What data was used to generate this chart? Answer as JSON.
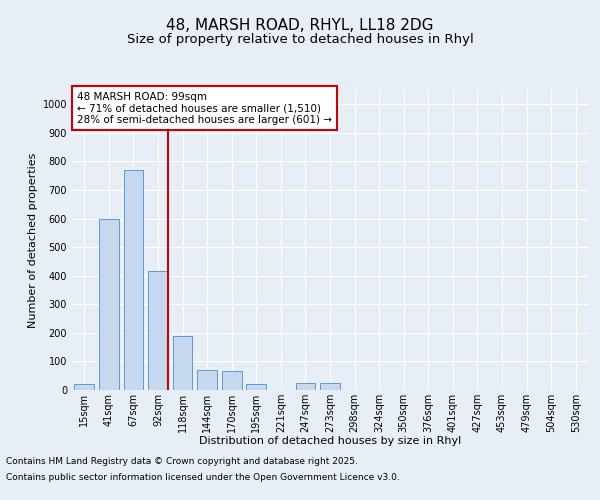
{
  "title_line1": "48, MARSH ROAD, RHYL, LL18 2DG",
  "title_line2": "Size of property relative to detached houses in Rhyl",
  "xlabel": "Distribution of detached houses by size in Rhyl",
  "ylabel": "Number of detached properties",
  "categories": [
    "15sqm",
    "41sqm",
    "67sqm",
    "92sqm",
    "118sqm",
    "144sqm",
    "170sqm",
    "195sqm",
    "221sqm",
    "247sqm",
    "273sqm",
    "298sqm",
    "324sqm",
    "350sqm",
    "376sqm",
    "401sqm",
    "427sqm",
    "453sqm",
    "479sqm",
    "504sqm",
    "530sqm"
  ],
  "values": [
    20,
    600,
    770,
    415,
    190,
    70,
    65,
    20,
    0,
    25,
    25,
    0,
    0,
    0,
    0,
    0,
    0,
    0,
    0,
    0,
    0
  ],
  "bar_color": "#c5d8ed",
  "bar_edge_color": "#5b9bd5",
  "highlight_index": 3,
  "red_line_index": 3,
  "red_line_color": "#cc0000",
  "annotation_text": "48 MARSH ROAD: 99sqm\n← 71% of detached houses are smaller (1,510)\n28% of semi-detached houses are larger (601) →",
  "annotation_box_color": "#ffffff",
  "annotation_box_edge_color": "#cc0000",
  "ylim": [
    0,
    1050
  ],
  "yticks": [
    0,
    100,
    200,
    300,
    400,
    500,
    600,
    700,
    800,
    900,
    1000
  ],
  "background_color": "#e8eef5",
  "plot_background_color": "#e8eef5",
  "footer_line1": "Contains HM Land Registry data © Crown copyright and database right 2025.",
  "footer_line2": "Contains public sector information licensed under the Open Government Licence v3.0.",
  "grid_color": "#ffffff",
  "title_fontsize": 11,
  "subtitle_fontsize": 9.5,
  "axis_label_fontsize": 8,
  "tick_fontsize": 7,
  "annotation_fontsize": 7.5,
  "footer_fontsize": 6.5
}
